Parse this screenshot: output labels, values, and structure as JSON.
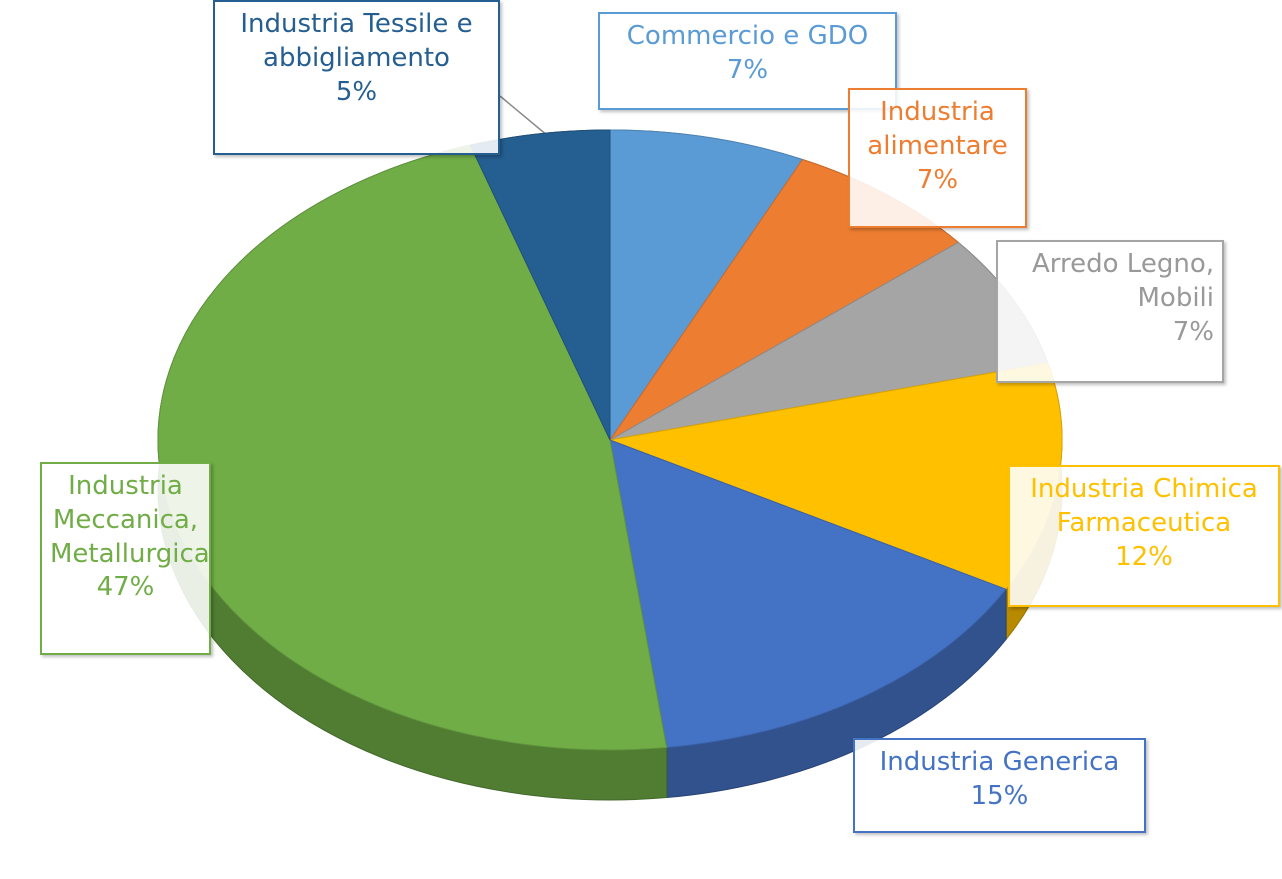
{
  "chart_data": {
    "type": "pie",
    "categories": [
      "Commercio e GDO",
      "Industria alimentare",
      "Arredo Legno, Mobili",
      "Industria Chimica Farmaceutica",
      "Industria Generica",
      "Industria Meccanica, Metallurgica",
      "Industria Tessile e abbigliamento"
    ],
    "values": [
      7,
      7,
      7,
      12,
      15,
      47,
      5
    ],
    "value_labels": [
      "7%",
      "7%",
      "7%",
      "12%",
      "15%",
      "47%",
      "5%"
    ],
    "colors": [
      "#5b9bd5",
      "#ed7d31",
      "#a5a5a5",
      "#ffc000",
      "#4472c4",
      "#70ad47",
      "#255e91"
    ]
  }
}
